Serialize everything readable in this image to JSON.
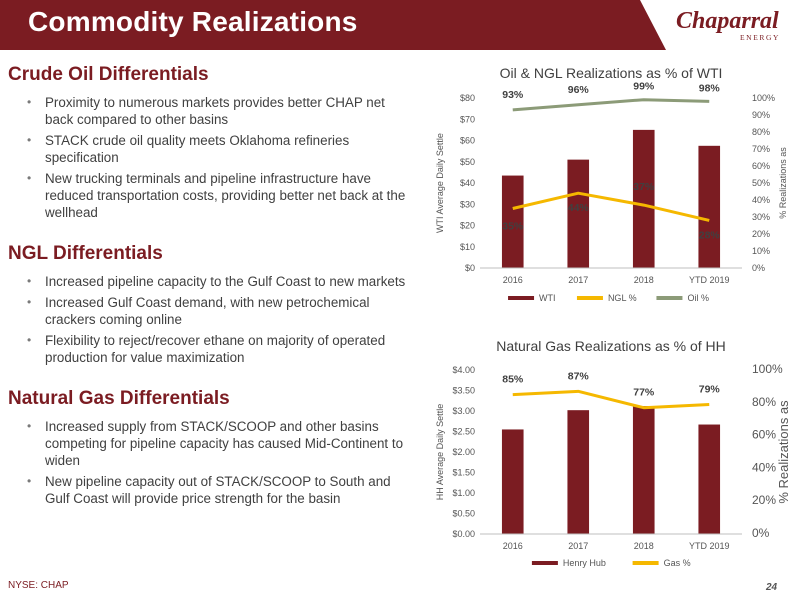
{
  "header": {
    "title": "Commodity Realizations",
    "logo_text": "Chaparral",
    "logo_sub": "ENERGY"
  },
  "colors": {
    "brand": "#7b1c22",
    "ngl": "#f5b800",
    "oil": "#8c9b78"
  },
  "sections": [
    {
      "heading": "Crude Oil Differentials",
      "bullets": [
        "Proximity to numerous markets provides better CHAP net back compared to other basins",
        "STACK crude oil quality meets Oklahoma refineries specification",
        "New trucking terminals and pipeline infrastructure have reduced transportation costs, providing better net back at the wellhead"
      ]
    },
    {
      "heading": "NGL Differentials",
      "bullets": [
        "Increased pipeline capacity to the Gulf Coast to new markets",
        "Increased Gulf Coast demand, with new petrochemical crackers coming online",
        "Flexibility to reject/recover ethane on majority of operated production for value maximization"
      ]
    },
    {
      "heading": "Natural Gas Differentials",
      "bullets": [
        "Increased supply from STACK/SCOOP and other basins competing for pipeline capacity has caused Mid-Continent to widen",
        "New pipeline capacity out of STACK/SCOOP to South and Gulf Coast will provide price strength for the basin"
      ]
    }
  ],
  "footer": {
    "ticker": "NYSE: CHAP",
    "page": "24"
  },
  "chart_data": [
    {
      "type": "bar",
      "title": "Oil & NGL Realizations as % of WTI",
      "ylabel": "WTI Average Daily Settle",
      "y2label": "% Realizations as",
      "categories": [
        "2016",
        "2017",
        "2018",
        "YTD 2019"
      ],
      "ylim": [
        0,
        80
      ],
      "y_ticks": [
        "$0",
        "$10",
        "$20",
        "$30",
        "$40",
        "$50",
        "$60",
        "$70",
        "$80"
      ],
      "y2lim": [
        0,
        100
      ],
      "y2_ticks": [
        "0%",
        "10%",
        "20%",
        "30%",
        "40%",
        "50%",
        "60%",
        "70%",
        "80%",
        "90%",
        "100%"
      ],
      "series": [
        {
          "name": "WTI",
          "type": "bar",
          "axis": "left",
          "values": [
            43.5,
            51,
            65,
            57.5
          ]
        },
        {
          "name": "NGL %",
          "type": "line",
          "axis": "right",
          "values": [
            35,
            44,
            37,
            28
          ],
          "labels": [
            "35%",
            "44%",
            "37%",
            "28%"
          ]
        },
        {
          "name": "Oil %",
          "type": "line",
          "axis": "right",
          "values": [
            93,
            96,
            99,
            98
          ],
          "labels": [
            "93%",
            "96%",
            "99%",
            "98%"
          ]
        }
      ],
      "legend": "bottom"
    },
    {
      "type": "bar",
      "title": "Natural Gas Realizations as % of HH",
      "ylabel": "HH Average Daily Settle",
      "y2label": "% Realizations as",
      "categories": [
        "2016",
        "2017",
        "2018",
        "YTD 2019"
      ],
      "ylim": [
        0,
        4
      ],
      "y_ticks": [
        "$0.00",
        "$0.50",
        "$1.00",
        "$1.50",
        "$2.00",
        "$2.50",
        "$3.00",
        "$3.50",
        "$4.00"
      ],
      "y2lim": [
        0,
        100
      ],
      "y2_ticks": [
        "0%",
        "20%",
        "40%",
        "60%",
        "80%",
        "100%"
      ],
      "series": [
        {
          "name": "Henry Hub",
          "type": "bar",
          "axis": "left",
          "values": [
            2.55,
            3.02,
            3.12,
            2.67
          ]
        },
        {
          "name": "Gas %",
          "type": "line",
          "axis": "right",
          "values": [
            85,
            87,
            77,
            79
          ],
          "labels": [
            "85%",
            "87%",
            "77%",
            "79%"
          ]
        }
      ],
      "legend": "bottom"
    }
  ]
}
